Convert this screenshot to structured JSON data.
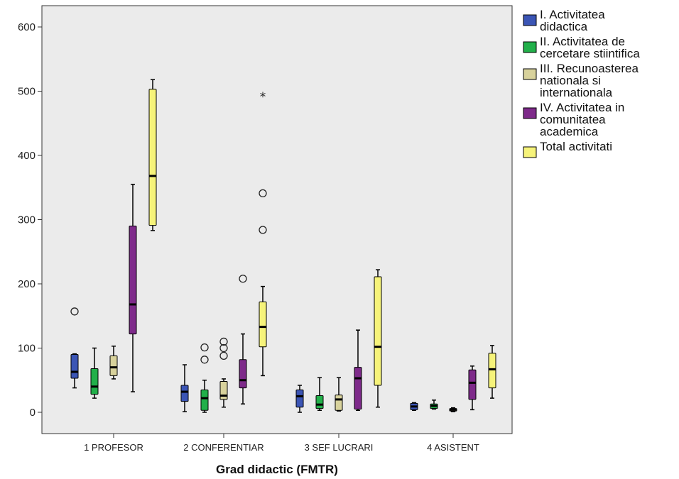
{
  "chart_data": {
    "type": "boxplot",
    "xlabel": "Grad didactic (FMTR)",
    "ylabel": "",
    "ylim": [
      -30,
      635
    ],
    "yticks": [
      0,
      100,
      200,
      300,
      400,
      500,
      600
    ],
    "grid": false,
    "legend_position": "right",
    "plot_background": "#ebebeb",
    "categories": [
      "1 PROFESOR",
      "2 CONFERENTIAR",
      "3 SEF LUCRARI",
      "4 ASISTENT"
    ],
    "series": [
      {
        "name": "I. Activitatea didactica",
        "legend_lines": [
          "I. Activitatea",
          "didactica"
        ],
        "color": "#3b55b5",
        "boxes": [
          {
            "min": 38,
            "q1": 53,
            "median": 63,
            "q3": 90,
            "max": 91,
            "outliers": [
              {
                "value": 157,
                "symbol": "circle"
              }
            ]
          },
          {
            "min": 1,
            "q1": 17,
            "median": 32,
            "q3": 42,
            "max": 74,
            "outliers": []
          },
          {
            "min": 0,
            "q1": 8,
            "median": 25,
            "q3": 35,
            "max": 42,
            "outliers": []
          },
          {
            "min": 3,
            "q1": 4,
            "median": 9,
            "q3": 14,
            "max": 15,
            "outliers": []
          }
        ]
      },
      {
        "name": "II. Activitatea de cercetare stiintifica",
        "legend_lines": [
          "II. Activitatea de",
          "cercetare stiintifica"
        ],
        "color": "#22b04a",
        "boxes": [
          {
            "min": 22,
            "q1": 28,
            "median": 40,
            "q3": 68,
            "max": 100,
            "outliers": []
          },
          {
            "min": 0,
            "q1": 3,
            "median": 22,
            "q3": 35,
            "max": 50,
            "outliers": [
              {
                "value": 82,
                "symbol": "circle"
              },
              {
                "value": 101,
                "symbol": "circle"
              }
            ]
          },
          {
            "min": 3,
            "q1": 6,
            "median": 12,
            "q3": 26,
            "max": 54,
            "outliers": []
          },
          {
            "min": 5,
            "q1": 6,
            "median": 10,
            "q3": 13,
            "max": 19,
            "outliers": []
          }
        ]
      },
      {
        "name": "III. Recunoasterea nationala si internationala",
        "legend_lines": [
          "III. Recunoasterea",
          "nationala si",
          "internationala"
        ],
        "color": "#d8d29c",
        "boxes": [
          {
            "min": 52,
            "q1": 57,
            "median": 70,
            "q3": 88,
            "max": 103,
            "outliers": []
          },
          {
            "min": 8,
            "q1": 20,
            "median": 26,
            "q3": 48,
            "max": 52,
            "outliers": [
              {
                "value": 88,
                "symbol": "circle"
              },
              {
                "value": 100,
                "symbol": "circle"
              },
              {
                "value": 110,
                "symbol": "circle"
              }
            ]
          },
          {
            "min": 2,
            "q1": 3,
            "median": 20,
            "q3": 27,
            "max": 54,
            "outliers": []
          },
          {
            "min": 1,
            "q1": 2,
            "median": 4,
            "q3": 6,
            "max": 7,
            "outliers": []
          }
        ]
      },
      {
        "name": "IV. Activitatea in comunitatea academica",
        "legend_lines": [
          "IV. Activitatea in",
          "comunitatea",
          "academica"
        ],
        "color": "#7e2a8a",
        "boxes": [
          {
            "min": 32,
            "q1": 122,
            "median": 168,
            "q3": 290,
            "max": 355,
            "outliers": []
          },
          {
            "min": 13,
            "q1": 38,
            "median": 50,
            "q3": 82,
            "max": 122,
            "outliers": [
              {
                "value": 208,
                "symbol": "circle"
              }
            ]
          },
          {
            "min": 3,
            "q1": 5,
            "median": 53,
            "q3": 70,
            "max": 128,
            "outliers": []
          },
          {
            "min": 4,
            "q1": 20,
            "median": 46,
            "q3": 66,
            "max": 72,
            "outliers": []
          }
        ]
      },
      {
        "name": "Total activitati",
        "legend_lines": [
          "Total activitati"
        ],
        "color": "#f6f37a",
        "boxes": [
          {
            "min": 283,
            "q1": 291,
            "median": 368,
            "q3": 503,
            "max": 518,
            "outliers": []
          },
          {
            "min": 57,
            "q1": 102,
            "median": 133,
            "q3": 172,
            "max": 196,
            "outliers": [
              {
                "value": 284,
                "symbol": "circle"
              },
              {
                "value": 341,
                "symbol": "circle"
              },
              {
                "value": 494,
                "symbol": "star"
              }
            ]
          },
          {
            "min": 8,
            "q1": 42,
            "median": 102,
            "q3": 211,
            "max": 222,
            "outliers": []
          },
          {
            "min": 22,
            "q1": 38,
            "median": 67,
            "q3": 92,
            "max": 104,
            "outliers": []
          }
        ]
      }
    ]
  }
}
